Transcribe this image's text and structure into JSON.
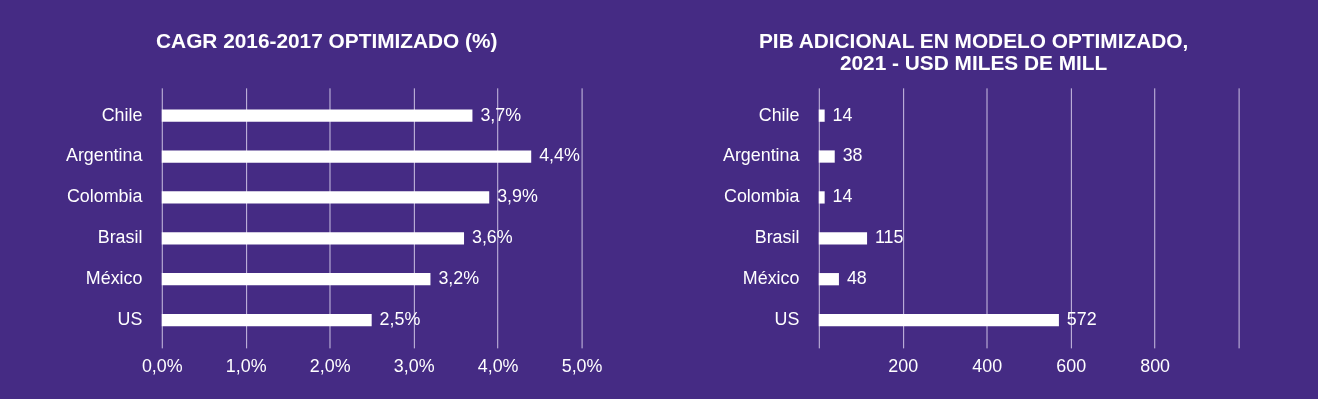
{
  "chart_data": [
    {
      "type": "bar",
      "orientation": "horizontal",
      "title": "CAGR 2016-2017 OPTIMIZADO (%)",
      "categories": [
        "Chile",
        "Argentina",
        "Colombia",
        "Brasil",
        "México",
        "US"
      ],
      "values": [
        3.7,
        4.4,
        3.9,
        3.6,
        3.2,
        2.5
      ],
      "value_labels": [
        "3,7%",
        "4,4%",
        "3,9%",
        "3,6%",
        "3,2%",
        "2,5%"
      ],
      "color": "#ffffff",
      "xlim": [
        0,
        5
      ],
      "xticks": [
        {
          "value": 0,
          "label": "0,0%"
        },
        {
          "value": 1,
          "label": "1,0%"
        },
        {
          "value": 2,
          "label": "2,0%"
        },
        {
          "value": 3,
          "label": "3,0%"
        },
        {
          "value": 4,
          "label": "4,0%"
        },
        {
          "value": 5,
          "label": "5,0%"
        }
      ],
      "grid": "x"
    },
    {
      "type": "bar",
      "orientation": "horizontal",
      "title": "PIB ADICIONAL EN MODELO OPTIMIZADO,\n2021 - USD MILES DE MILL",
      "categories": [
        "Chile",
        "Argentina",
        "Colombia",
        "Brasil",
        "México",
        "US"
      ],
      "values": [
        14,
        38,
        14,
        115,
        48,
        572
      ],
      "data_labels": true,
      "color": "#ffffff",
      "xlim": [
        0,
        1000
      ],
      "xticks": [
        {
          "value": 0,
          "label": null
        },
        200,
        400,
        600,
        800,
        {
          "value": 1000,
          "label": null
        }
      ],
      "grid": "x"
    }
  ]
}
